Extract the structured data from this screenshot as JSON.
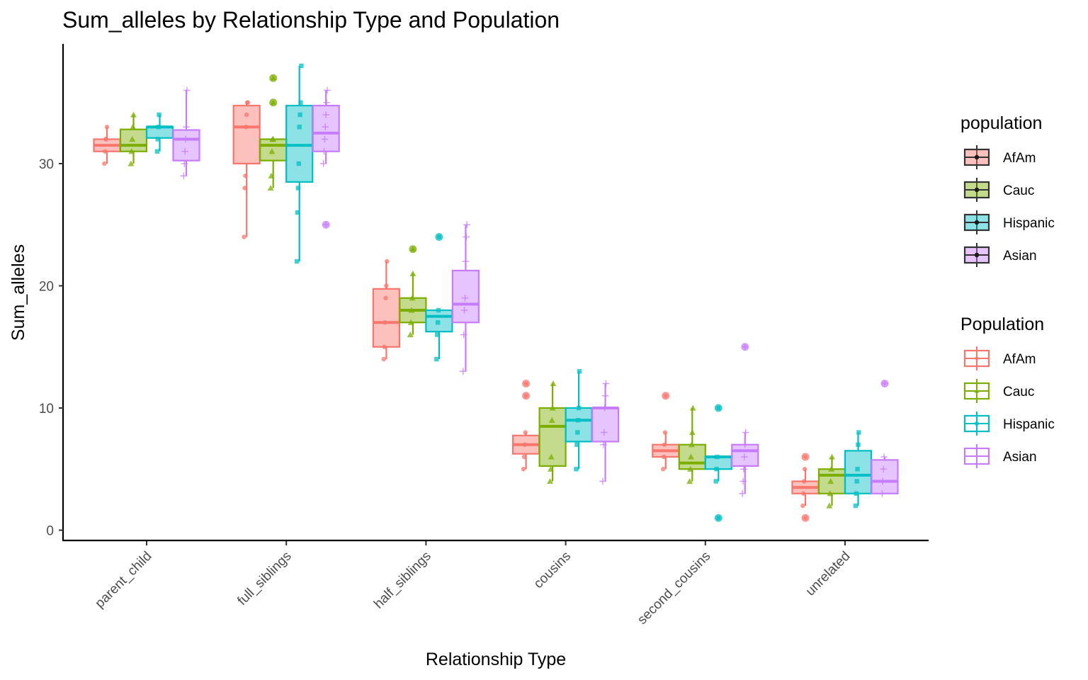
{
  "chart_data": {
    "type": "boxplot",
    "title": "Sum_alleles by Relationship Type and Population",
    "xlabel": "Relationship Type",
    "ylabel": "Sum_alleles",
    "ylim": [
      -0.8,
      39.5
    ],
    "yticks": [
      0,
      10,
      20,
      30
    ],
    "grid": false,
    "categories": [
      "parent_child",
      "full_siblings",
      "half_siblings",
      "cousins",
      "second_cousins",
      "unrelated"
    ],
    "legend_position": "right",
    "legends": [
      {
        "title": "population",
        "style": "filled",
        "entries": [
          "AfAm",
          "Cauc",
          "Hispanic",
          "Asian"
        ]
      },
      {
        "title": "Population",
        "style": "outline",
        "entries": [
          "AfAm",
          "Cauc",
          "Hispanic",
          "Asian"
        ]
      }
    ],
    "series": [
      {
        "name": "AfAm",
        "color": "#F8766D",
        "shape": "circle",
        "boxes": [
          {
            "min": 30,
            "q1": 31,
            "median": 31.5,
            "q3": 32,
            "max": 33,
            "outliers": [],
            "points": [
              30,
              31,
              32,
              32,
              33
            ]
          },
          {
            "min": 24,
            "q1": 30,
            "median": 33,
            "q3": 34.75,
            "max": 35,
            "outliers": [],
            "points": [
              24,
              28,
              29,
              33,
              34,
              35,
              35
            ]
          },
          {
            "min": 14,
            "q1": 15,
            "median": 17,
            "q3": 19.75,
            "max": 22,
            "outliers": [],
            "points": [
              14,
              15,
              17,
              19,
              20,
              22
            ]
          },
          {
            "min": 5,
            "q1": 6.25,
            "median": 7,
            "q3": 7.75,
            "max": 8,
            "outliers": [
              11,
              12
            ],
            "points": [
              5,
              6,
              7,
              8
            ]
          },
          {
            "min": 5,
            "q1": 6,
            "median": 6.5,
            "q3": 7,
            "max": 8,
            "outliers": [
              11
            ],
            "points": [
              5,
              6,
              7,
              8
            ]
          },
          {
            "min": 2,
            "q1": 3,
            "median": 3.5,
            "q3": 4,
            "max": 5,
            "outliers": [
              6,
              1
            ],
            "points": [
              2,
              3,
              4,
              5
            ]
          }
        ]
      },
      {
        "name": "Cauc",
        "color": "#7CAE00",
        "shape": "triangle",
        "boxes": [
          {
            "min": 30,
            "q1": 31,
            "median": 31.5,
            "q3": 32.8,
            "max": 34,
            "outliers": [],
            "points": [
              30,
              31,
              32,
              33,
              34
            ]
          },
          {
            "min": 28,
            "q1": 30.25,
            "median": 31.5,
            "q3": 32,
            "max": 32,
            "outliers": [
              35,
              37
            ],
            "points": [
              28,
              29,
              31,
              32,
              32
            ]
          },
          {
            "min": 16,
            "q1": 17,
            "median": 18,
            "q3": 19,
            "max": 21,
            "outliers": [
              23
            ],
            "points": [
              16,
              17,
              18,
              19,
              21
            ]
          },
          {
            "min": 4,
            "q1": 5.25,
            "median": 8.5,
            "q3": 10,
            "max": 12,
            "outliers": [],
            "points": [
              4,
              5,
              6,
              9,
              10,
              12
            ]
          },
          {
            "min": 4,
            "q1": 5,
            "median": 5.5,
            "q3": 7,
            "max": 10,
            "outliers": [],
            "points": [
              4,
              5,
              6,
              7,
              8,
              10
            ]
          },
          {
            "min": 2,
            "q1": 3,
            "median": 4.5,
            "q3": 5,
            "max": 6,
            "outliers": [],
            "points": [
              2,
              3,
              4,
              5,
              6
            ]
          }
        ]
      },
      {
        "name": "Hispanic",
        "color": "#00BFC4",
        "shape": "square",
        "boxes": [
          {
            "min": 31,
            "q1": 32.1,
            "median": 33,
            "q3": 33,
            "max": 34,
            "outliers": [],
            "points": [
              31,
              32,
              33,
              34
            ]
          },
          {
            "min": 22,
            "q1": 28.5,
            "median": 31.5,
            "q3": 34.75,
            "max": 38,
            "outliers": [],
            "points": [
              22,
              26,
              28,
              30,
              33,
              34,
              35,
              38
            ]
          },
          {
            "min": 14,
            "q1": 16.25,
            "median": 17.5,
            "q3": 18,
            "max": 18,
            "outliers": [
              24
            ],
            "points": [
              14,
              16,
              17,
              18
            ]
          },
          {
            "min": 5,
            "q1": 7.25,
            "median": 9,
            "q3": 10,
            "max": 13,
            "outliers": [],
            "points": [
              5,
              7,
              8,
              9,
              10,
              13
            ]
          },
          {
            "min": 4,
            "q1": 5,
            "median": 6,
            "q3": 6,
            "max": 6,
            "outliers": [
              10,
              1
            ],
            "points": [
              4,
              5,
              6
            ]
          },
          {
            "min": 2,
            "q1": 3,
            "median": 4.5,
            "q3": 6.5,
            "max": 8,
            "outliers": [],
            "points": [
              2,
              3,
              4,
              5,
              7,
              8
            ]
          }
        ]
      },
      {
        "name": "Asian",
        "color": "#C77CFF",
        "shape": "plus",
        "boxes": [
          {
            "min": 29,
            "q1": 30.25,
            "median": 32,
            "q3": 32.75,
            "max": 36,
            "outliers": [],
            "points": [
              29,
              30,
              31,
              32,
              33,
              36
            ]
          },
          {
            "min": 30,
            "q1": 31,
            "median": 32.5,
            "q3": 34.75,
            "max": 36,
            "outliers": [
              25
            ],
            "points": [
              30,
              31,
              32,
              33,
              34,
              35,
              36
            ]
          },
          {
            "min": 13,
            "q1": 17,
            "median": 18.5,
            "q3": 21.25,
            "max": 25,
            "outliers": [],
            "points": [
              13,
              16,
              18,
              19,
              22,
              24,
              25
            ]
          },
          {
            "min": 4,
            "q1": 7.25,
            "median": 10,
            "q3": 10,
            "max": 12,
            "outliers": [],
            "points": [
              4,
              7,
              8,
              10,
              11,
              12
            ]
          },
          {
            "min": 3,
            "q1": 5.25,
            "median": 6.5,
            "q3": 7,
            "max": 8,
            "outliers": [
              15
            ],
            "points": [
              3,
              4,
              5,
              6,
              7,
              8
            ]
          },
          {
            "min": 3,
            "q1": 3,
            "median": 4,
            "q3": 5.75,
            "max": 6,
            "outliers": [
              12
            ],
            "points": [
              3,
              4,
              5,
              6
            ]
          }
        ]
      }
    ]
  }
}
